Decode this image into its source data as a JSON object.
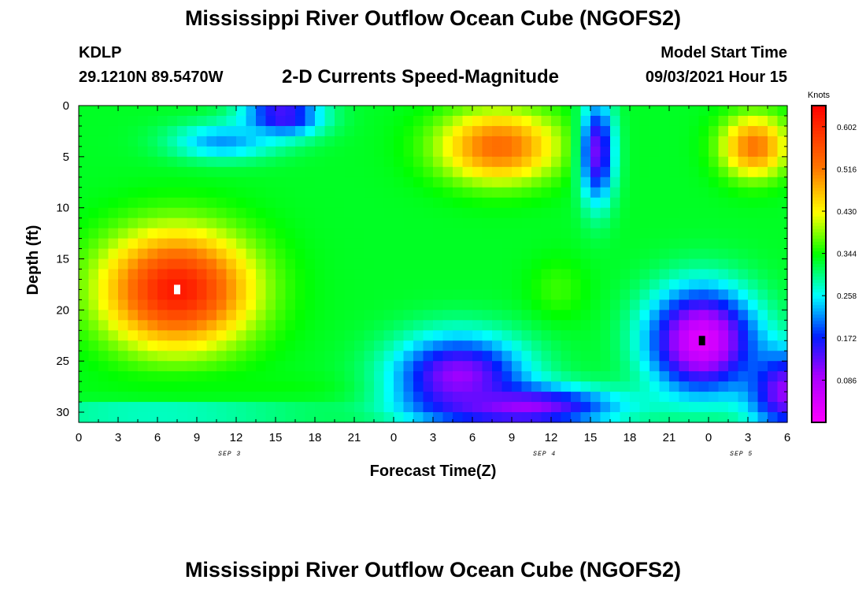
{
  "header": {
    "title": "Mississippi River Outflow Ocean Cube (NGOFS2)",
    "station_id": "KDLP",
    "coordinates": "29.1210N  89.5470W",
    "subtitle": "2-D Currents Speed-Magnitude",
    "model_start_label": "Model Start Time",
    "model_start_value": "09/03/2021 Hour 15"
  },
  "footer": {
    "title": "Mississippi River Outflow Ocean Cube (NGOFS2)"
  },
  "chart_data": {
    "type": "heatmap",
    "title": "2-D Currents Speed-Magnitude",
    "xlabel": "Forecast Time(Z)",
    "ylabel": "Depth (ft)",
    "x_ticks": [
      "0",
      "3",
      "6",
      "9",
      "12",
      "15",
      "18",
      "21",
      "0",
      "3",
      "6",
      "9",
      "12",
      "15",
      "18",
      "21",
      "0",
      "3",
      "6"
    ],
    "x_range_hours": [
      0,
      54
    ],
    "y_ticks": [
      0,
      5,
      10,
      15,
      20,
      25,
      30
    ],
    "ylim": [
      0,
      31
    ],
    "y_inverted": true,
    "day_labels": [
      {
        "label": "SEP 3",
        "hour": 11.5
      },
      {
        "label": "SEP 4",
        "hour": 35.5
      },
      {
        "label": "SEP 5",
        "hour": 50.5
      }
    ],
    "colorbar": {
      "unit": "Knots",
      "range": [
        0,
        0.645
      ],
      "ticks": [
        "0.602",
        "0.516",
        "0.430",
        "0.344",
        "0.258",
        "0.172",
        "0.086"
      ],
      "tick_values": [
        0.602,
        0.516,
        0.43,
        0.344,
        0.258,
        0.172,
        0.086
      ]
    },
    "markers": [
      {
        "type": "max",
        "hour": 7.5,
        "depth": 18,
        "color": "#ffffff"
      },
      {
        "type": "min",
        "hour": 47.5,
        "depth": 23,
        "color": "#000000"
      }
    ],
    "features": [
      {
        "hour": 7.5,
        "depth": 18,
        "speed": 0.62,
        "width": 5.5,
        "height": 5.5
      },
      {
        "hour": 32,
        "depth": 4,
        "speed": 0.53,
        "width": 4.5,
        "height": 3.5
      },
      {
        "hour": 51.5,
        "depth": 4,
        "speed": 0.52,
        "width": 2.5,
        "height": 3
      },
      {
        "hour": 15.5,
        "depth": 1,
        "speed": 0.13,
        "width": 3,
        "height": 2
      },
      {
        "hour": 11,
        "depth": 3.5,
        "speed": 0.22,
        "width": 4,
        "height": 1.8
      },
      {
        "hour": 12.5,
        "depth": 27.5,
        "speed": 0.34,
        "width": 12,
        "height": 1.2
      },
      {
        "hour": 6,
        "depth": 30,
        "speed": 0.26,
        "width": 12,
        "height": 0.9
      },
      {
        "hour": 36.5,
        "depth": 18,
        "speed": 0.36,
        "width": 2.2,
        "height": 3
      },
      {
        "hour": 39.5,
        "depth": 4.5,
        "speed": 0.12,
        "width": 1.3,
        "height": 5
      },
      {
        "hour": 29,
        "depth": 26.5,
        "speed": 0.1,
        "width": 5,
        "height": 4
      },
      {
        "hour": 34,
        "depth": 29.5,
        "speed": 0.1,
        "width": 7,
        "height": 2
      },
      {
        "hour": 47.5,
        "depth": 23,
        "speed": 0.03,
        "width": 4,
        "height": 5
      },
      {
        "hour": 54,
        "depth": 28,
        "speed": 0.1,
        "width": 3,
        "height": 4
      }
    ],
    "background_speed": 0.33
  }
}
